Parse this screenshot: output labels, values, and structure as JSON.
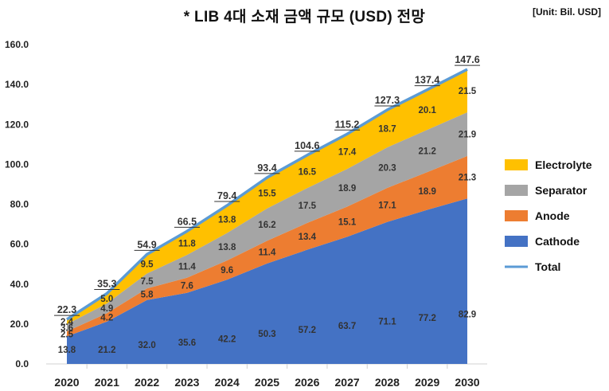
{
  "header": {
    "title": "* LIB 4대 소재 금액 규모 (USD) 전망",
    "unit": "[Unit: Bil. USD]"
  },
  "colors": {
    "cathode": "#4472c4",
    "anode": "#ed7d31",
    "separator": "#a5a5a5",
    "electrolyte": "#ffc000",
    "total": "#5b9bd5"
  },
  "chart_data": {
    "type": "area",
    "stacked": true,
    "title": "* LIB 4대 소재 금액 규모 (USD) 전망",
    "unit": "[Unit: Bil. USD]",
    "categories": [
      "2020",
      "2021",
      "2022",
      "2023",
      "2024",
      "2025",
      "2026",
      "2027",
      "2028",
      "2029",
      "2030"
    ],
    "ylim": [
      0,
      160
    ],
    "yticks": [
      "0.0",
      "20.0",
      "40.0",
      "60.0",
      "80.0",
      "100.0",
      "120.0",
      "140.0",
      "160.0"
    ],
    "series": [
      {
        "name": "Cathode",
        "values": [
          13.8,
          21.2,
          32.0,
          35.6,
          42.2,
          50.3,
          57.2,
          63.7,
          71.1,
          77.2,
          82.9
        ]
      },
      {
        "name": "Anode",
        "values": [
          2.5,
          4.2,
          5.8,
          7.6,
          9.6,
          11.4,
          13.4,
          15.1,
          17.1,
          18.9,
          21.3
        ]
      },
      {
        "name": "Separator",
        "values": [
          3.6,
          4.9,
          7.5,
          11.4,
          13.8,
          16.2,
          17.5,
          18.9,
          20.3,
          21.2,
          21.9
        ]
      },
      {
        "name": "Electrolyte",
        "values": [
          2.4,
          5.0,
          9.5,
          11.8,
          13.8,
          15.5,
          16.5,
          17.4,
          18.7,
          20.1,
          21.5
        ]
      }
    ],
    "total": {
      "name": "Total",
      "values": [
        22.3,
        35.3,
        54.9,
        66.5,
        79.4,
        93.4,
        104.6,
        115.2,
        127.3,
        137.4,
        147.6
      ]
    },
    "legend": [
      "Electrolyte",
      "Separator",
      "Anode",
      "Cathode",
      "Total"
    ],
    "legend_position": "right"
  }
}
